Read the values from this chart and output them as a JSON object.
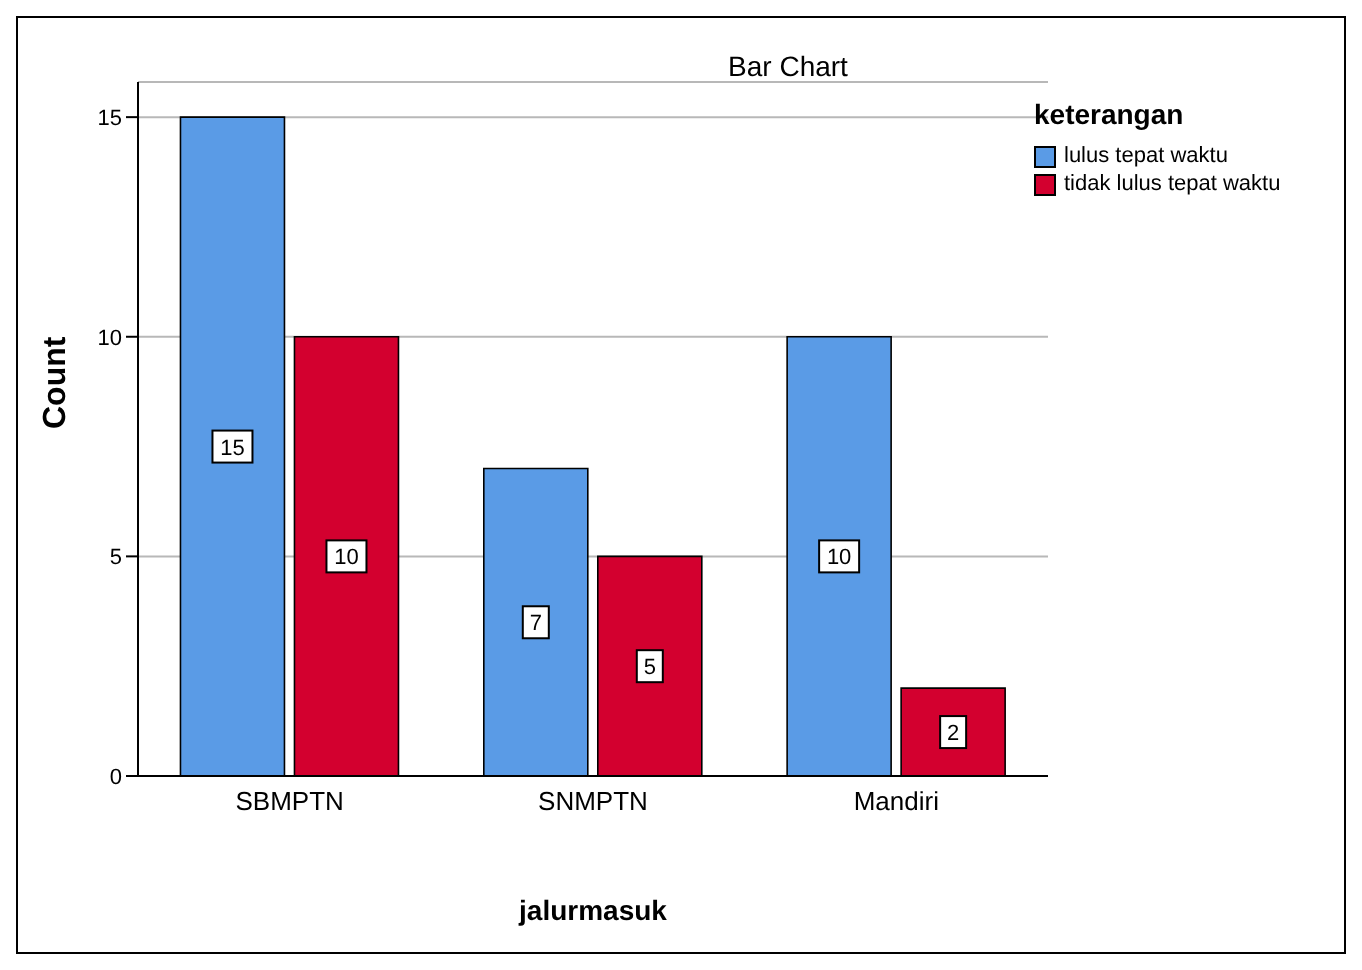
{
  "chart_data": {
    "type": "bar",
    "title": "Bar Chart",
    "xlabel": "jalurmasuk",
    "ylabel": "Count",
    "legend_title": "keterangan",
    "categories": [
      "SBMPTN",
      "SNMPTN",
      "Mandiri"
    ],
    "series": [
      {
        "name": "lulus tepat waktu",
        "color": "#5a9be6",
        "values": [
          15,
          7,
          10
        ]
      },
      {
        "name": "tidak lulus tepat waktu",
        "color": "#d3002f",
        "values": [
          10,
          5,
          2
        ]
      }
    ],
    "ylim": [
      0,
      15.8
    ],
    "yticks": [
      0,
      5,
      10,
      15
    ],
    "grid": "y",
    "legend": "top right",
    "data_labels": true
  }
}
